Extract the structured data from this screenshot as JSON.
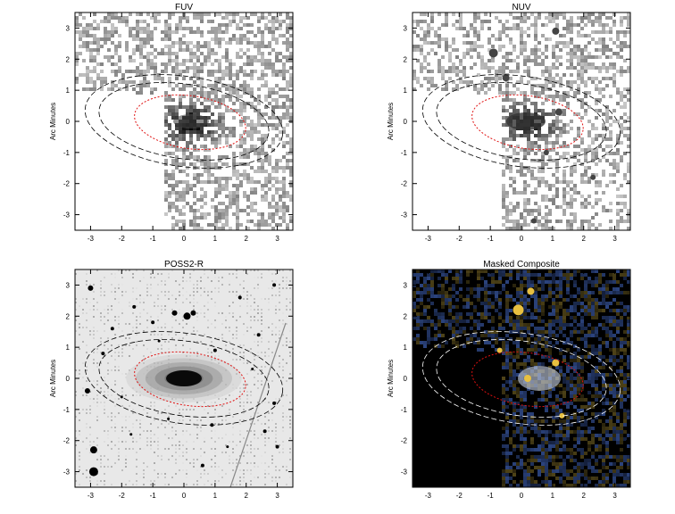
{
  "panels": [
    {
      "id": "fuv",
      "title": "FUV",
      "ylabel": "Arc Minutes",
      "xticks": [
        "-3",
        "-2",
        "-1",
        "0",
        "1",
        "2",
        "3"
      ],
      "yticks": [
        "3",
        "2",
        "1",
        "0",
        "-1",
        "-2",
        "-3"
      ],
      "style": "uv-sparse"
    },
    {
      "id": "nuv",
      "title": "NUV",
      "ylabel": "Arc Minutes",
      "xticks": [
        "-3",
        "-2",
        "-1",
        "0",
        "1",
        "2",
        "3"
      ],
      "yticks": [
        "3",
        "2",
        "1",
        "0",
        "-1",
        "-2",
        "-3"
      ],
      "style": "uv-dense"
    },
    {
      "id": "poss2r",
      "title": "POSS2-R",
      "ylabel": "Arc Minutes",
      "xticks": [
        "-3",
        "-2",
        "-1",
        "0",
        "1",
        "2",
        "3"
      ],
      "yticks": [
        "3",
        "2",
        "1",
        "0",
        "-1",
        "-2",
        "-3"
      ],
      "style": "optical"
    },
    {
      "id": "composite",
      "title": "Masked Composite",
      "ylabel": "Arc Minutes",
      "xticks": [
        "-3",
        "-2",
        "-1",
        "0",
        "1",
        "2",
        "3"
      ],
      "yticks": [
        "3",
        "2",
        "1",
        "0",
        "-1",
        "-2",
        "-3"
      ],
      "style": "composite"
    }
  ],
  "colors": {
    "ellipse_inner": "#e01010",
    "ellipse_outer": "#000000",
    "composite_ellipse_outer": "#ffffff",
    "composite_background": "#000000",
    "composite_blue": "#3a5aa8",
    "composite_yellow": "#e8c040"
  }
}
